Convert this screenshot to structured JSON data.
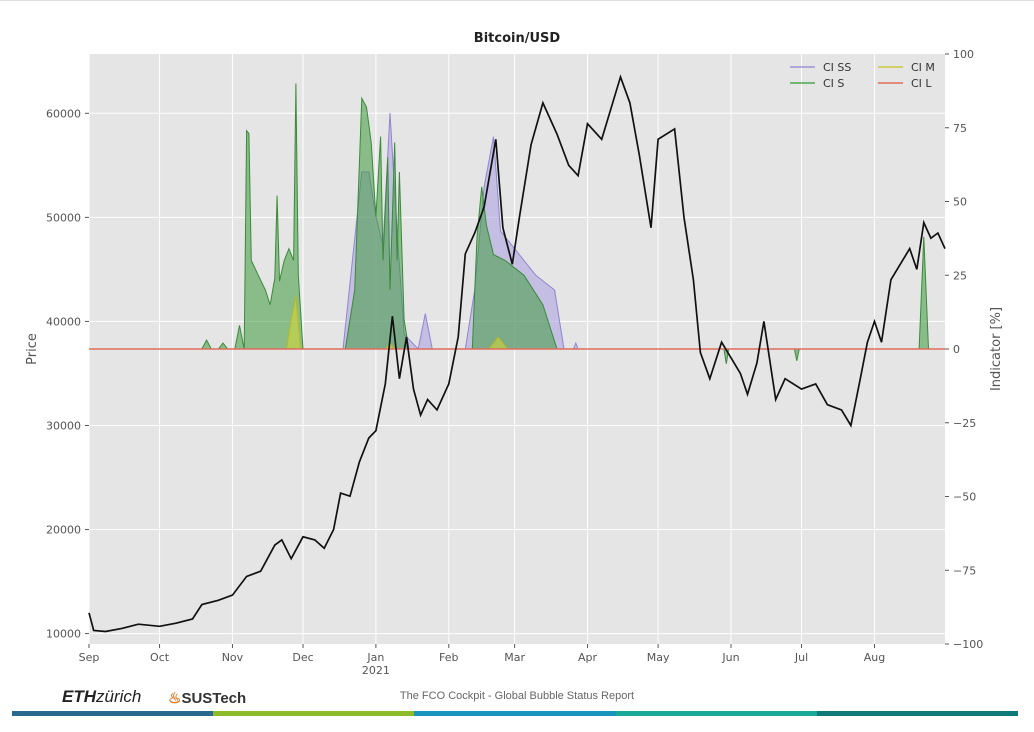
{
  "chart_data": {
    "type": "line",
    "title": "Bitcoin/USD",
    "ylabel": "Price",
    "y2label": "Indicator [%]",
    "ylim": [
      9000,
      65700
    ],
    "y2lim": [
      -100,
      100
    ],
    "yticks": [
      10000,
      20000,
      30000,
      40000,
      50000,
      60000
    ],
    "y2ticks": [
      100,
      75,
      50,
      25,
      0,
      -25,
      -50,
      -75,
      -100
    ],
    "x_unit": "days since 2020-09-01",
    "xlim": [
      0,
      364
    ],
    "xticks": [
      {
        "day": 0,
        "label": "Sep"
      },
      {
        "day": 30,
        "label": "Oct"
      },
      {
        "day": 61,
        "label": "Nov"
      },
      {
        "day": 91,
        "label": "Dec"
      },
      {
        "day": 122,
        "label": "Jan",
        "sublabel": "2021"
      },
      {
        "day": 153,
        "label": "Feb"
      },
      {
        "day": 181,
        "label": "Mar"
      },
      {
        "day": 212,
        "label": "Apr"
      },
      {
        "day": 242,
        "label": "May"
      },
      {
        "day": 273,
        "label": "Jun"
      },
      {
        "day": 303,
        "label": "Jul"
      },
      {
        "day": 334,
        "label": "Aug"
      }
    ],
    "grid": true,
    "legend_position": "top-right",
    "legend": [
      {
        "name": "CI SS",
        "color": "#9b93d6"
      },
      {
        "name": "CI M",
        "color": "#c8c83a"
      },
      {
        "name": "CI S",
        "color": "#4fa64f"
      },
      {
        "name": "CI L",
        "color": "#e06c5c"
      }
    ],
    "price": [
      [
        0,
        12000
      ],
      [
        2,
        10300
      ],
      [
        7,
        10200
      ],
      [
        14,
        10500
      ],
      [
        21,
        10900
      ],
      [
        30,
        10700
      ],
      [
        37,
        11000
      ],
      [
        44,
        11400
      ],
      [
        48,
        12800
      ],
      [
        55,
        13200
      ],
      [
        61,
        13700
      ],
      [
        67,
        15500
      ],
      [
        73,
        16000
      ],
      [
        79,
        18500
      ],
      [
        82,
        19000
      ],
      [
        86,
        17200
      ],
      [
        91,
        19300
      ],
      [
        96,
        19000
      ],
      [
        100,
        18200
      ],
      [
        104,
        20000
      ],
      [
        107,
        23500
      ],
      [
        111,
        23200
      ],
      [
        115,
        26500
      ],
      [
        119,
        28800
      ],
      [
        122,
        29500
      ],
      [
        126,
        34000
      ],
      [
        129,
        40500
      ],
      [
        132,
        34500
      ],
      [
        135,
        38500
      ],
      [
        138,
        33500
      ],
      [
        141,
        31000
      ],
      [
        144,
        32500
      ],
      [
        148,
        31500
      ],
      [
        153,
        34000
      ],
      [
        157,
        38500
      ],
      [
        160,
        46500
      ],
      [
        164,
        48500
      ],
      [
        168,
        51000
      ],
      [
        173,
        57500
      ],
      [
        176,
        49000
      ],
      [
        180,
        45500
      ],
      [
        183,
        50000
      ],
      [
        188,
        57000
      ],
      [
        193,
        61000
      ],
      [
        199,
        58000
      ],
      [
        204,
        55000
      ],
      [
        208,
        54000
      ],
      [
        212,
        59000
      ],
      [
        218,
        57500
      ],
      [
        226,
        63500
      ],
      [
        230,
        61000
      ],
      [
        234,
        56000
      ],
      [
        239,
        49000
      ],
      [
        242,
        57500
      ],
      [
        249,
        58500
      ],
      [
        253,
        50000
      ],
      [
        257,
        44000
      ],
      [
        260,
        37000
      ],
      [
        264,
        34500
      ],
      [
        269,
        38000
      ],
      [
        273,
        36500
      ],
      [
        277,
        35000
      ],
      [
        280,
        33000
      ],
      [
        284,
        36000
      ],
      [
        287,
        40000
      ],
      [
        292,
        32500
      ],
      [
        296,
        34500
      ],
      [
        303,
        33500
      ],
      [
        309,
        34000
      ],
      [
        314,
        32000
      ],
      [
        320,
        31500
      ],
      [
        324,
        30000
      ],
      [
        328,
        34500
      ],
      [
        331,
        38000
      ],
      [
        334,
        40000
      ],
      [
        337,
        38000
      ],
      [
        341,
        44000
      ],
      [
        345,
        45500
      ],
      [
        349,
        47000
      ],
      [
        352,
        45000
      ],
      [
        355,
        49500
      ],
      [
        358,
        48000
      ],
      [
        361,
        48500
      ],
      [
        364,
        47000
      ]
    ],
    "ci_ss": [
      [
        108,
        0
      ],
      [
        112,
        30
      ],
      [
        116,
        60
      ],
      [
        119,
        60
      ],
      [
        122,
        45
      ],
      [
        125,
        35
      ],
      [
        128,
        80
      ],
      [
        131,
        40
      ],
      [
        134,
        5
      ],
      [
        140,
        0
      ],
      [
        143,
        12
      ],
      [
        146,
        0
      ],
      [
        160,
        0
      ],
      [
        164,
        20
      ],
      [
        168,
        55
      ],
      [
        172,
        72
      ],
      [
        175,
        40
      ],
      [
        180,
        35
      ],
      [
        190,
        25
      ],
      [
        198,
        20
      ],
      [
        202,
        0
      ],
      [
        206,
        0
      ],
      [
        207,
        2
      ],
      [
        208,
        0
      ]
    ],
    "ci_s": [
      [
        48,
        0
      ],
      [
        50,
        3
      ],
      [
        52,
        0
      ],
      [
        55,
        0
      ],
      [
        57,
        2
      ],
      [
        59,
        0
      ],
      [
        62,
        0
      ],
      [
        64,
        8
      ],
      [
        66,
        0
      ],
      [
        67,
        74
      ],
      [
        68,
        73
      ],
      [
        69,
        30
      ],
      [
        72,
        25
      ],
      [
        75,
        20
      ],
      [
        77,
        15
      ],
      [
        79,
        24
      ],
      [
        80,
        52
      ],
      [
        81,
        23
      ],
      [
        83,
        30
      ],
      [
        85,
        34
      ],
      [
        87,
        30
      ],
      [
        88,
        90
      ],
      [
        89,
        25
      ],
      [
        91,
        0
      ],
      [
        109,
        0
      ],
      [
        113,
        20
      ],
      [
        116,
        85
      ],
      [
        118,
        82
      ],
      [
        120,
        70
      ],
      [
        122,
        45
      ],
      [
        124,
        72
      ],
      [
        125,
        30
      ],
      [
        127,
        65
      ],
      [
        128,
        20
      ],
      [
        130,
        70
      ],
      [
        131,
        30
      ],
      [
        132,
        60
      ],
      [
        134,
        10
      ],
      [
        136,
        0
      ],
      [
        163,
        0
      ],
      [
        165,
        38
      ],
      [
        167,
        55
      ],
      [
        169,
        42
      ],
      [
        172,
        32
      ],
      [
        177,
        30
      ],
      [
        185,
        25
      ],
      [
        193,
        15
      ],
      [
        199,
        0
      ],
      [
        270,
        0
      ],
      [
        271,
        -5
      ],
      [
        272,
        0
      ],
      [
        300,
        0
      ],
      [
        301,
        -4
      ],
      [
        302,
        0
      ],
      [
        353,
        0
      ],
      [
        355,
        38
      ],
      [
        357,
        0
      ]
    ],
    "ci_m": [
      [
        84,
        0
      ],
      [
        86,
        10
      ],
      [
        88,
        18
      ],
      [
        90,
        0
      ],
      [
        126,
        0
      ],
      [
        128,
        2
      ],
      [
        130,
        0
      ],
      [
        170,
        0
      ],
      [
        174,
        4
      ],
      [
        178,
        0
      ]
    ],
    "ci_l": [
      [
        0,
        0
      ],
      [
        364,
        0
      ]
    ]
  },
  "footer": {
    "logo_eth": "ETH",
    "logo_eth_suffix": "zürich",
    "logo_sustech": "SUSTech",
    "report_title": "The FCO Cockpit - Global Bubble Status Report",
    "bar_colors": [
      "#2a6a8f",
      "#8dbb2c",
      "#1a93bd",
      "#1aa999",
      "#0f7a78"
    ]
  }
}
